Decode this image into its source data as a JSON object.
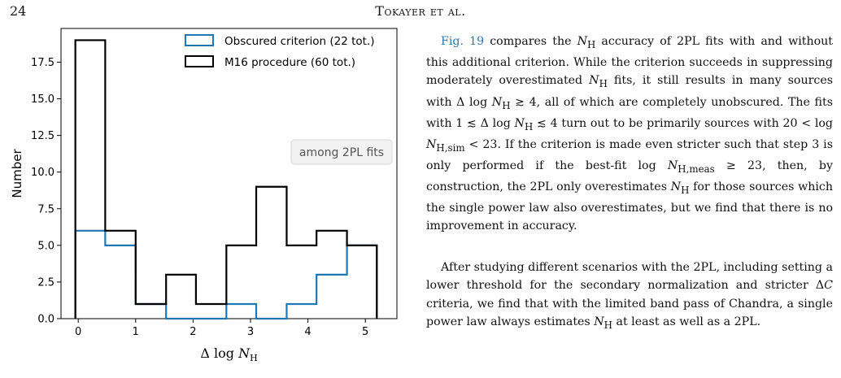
{
  "header": {
    "page_number": "24",
    "running_title": "Tokayer et al."
  },
  "figure": {
    "legend_box_text": "among 2PL fits"
  },
  "chart_data": {
    "type": "histogram",
    "xlabel": "Δ log N_H",
    "ylabel": "Number",
    "xlim": [
      -0.3,
      5.55
    ],
    "ylim": [
      0,
      19.8
    ],
    "xticks": [
      "0",
      "1",
      "2",
      "3",
      "4",
      "5"
    ],
    "yticks": [
      "0.0",
      "2.5",
      "5.0",
      "7.5",
      "10.0",
      "12.5",
      "15.0",
      "17.5"
    ],
    "bin_edges": [
      -0.05,
      0.47,
      1.0,
      1.53,
      2.05,
      2.58,
      3.1,
      3.63,
      4.15,
      4.68,
      5.2
    ],
    "legend_position": "upper right",
    "series": [
      {
        "name": "Obscured criterion (22 tot.)",
        "color": "#1f77b4",
        "values": [
          6,
          5,
          1,
          0,
          0,
          1,
          0,
          1,
          3,
          5
        ]
      },
      {
        "name": "M16 procedure (60 tot.)",
        "color": "#000000",
        "values": [
          19,
          6,
          1,
          3,
          1,
          5,
          9,
          5,
          6,
          5
        ]
      }
    ]
  },
  "text": {
    "p1": "Fig. 19 compares the N_H accuracy of 2PL fits with and without this additional criterion. While the criterion succeeds in suppressing moderately overestimated N_H fits, it still results in many sources with Δ log N_H ≳ 4, all of which are completely unobscured. The fits with 1 ≲ Δ log N_H ≲ 4 turn out to be primarily sources with 20 < log N_H,sim < 23. If the criterion is made even stricter such that step 3 is only performed if the best-fit log N_H,meas ≥ 23, then, by construction, the 2PL only overestimates N_H for those sources which the single power law also overestimates, but we find that there is no improvement in accuracy.",
    "p2": "After studying different scenarios with the 2PL, including setting a lower threshold for the secondary normalization and stricter ΔC criteria, we find that with the limited band pass of Chandra, a single power law always estimates N_H at least as well as a 2PL."
  }
}
